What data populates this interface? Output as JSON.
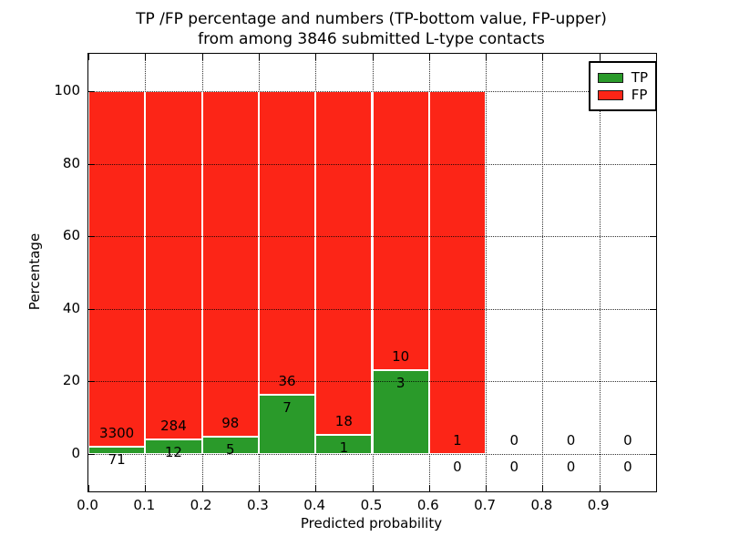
{
  "chart_data": {
    "type": "bar",
    "stacked": true,
    "title": "TP /FP percentage and numbers (TP-bottom value, FP-upper)",
    "subtitle": "from among 3846 submitted L-type contacts",
    "xlabel": "Predicted probability",
    "ylabel": "Percentage",
    "xlim": [
      0.0,
      1.0
    ],
    "ylim": [
      -10,
      110
    ],
    "grid": "dotted",
    "legend_position": "upper right",
    "x_tick_values": [
      0.0,
      0.1,
      0.2,
      0.3,
      0.4,
      0.5,
      0.6,
      0.7,
      0.8,
      0.9
    ],
    "x_tick_labels": [
      "0.0",
      "0.1",
      "0.2",
      "0.3",
      "0.4",
      "0.5",
      "0.6",
      "0.7",
      "0.8",
      "0.9"
    ],
    "y_tick_values": [
      0,
      20,
      40,
      60,
      80,
      100
    ],
    "y_tick_labels": [
      "0",
      "20",
      "40",
      "60",
      "80",
      "100"
    ],
    "series": [
      {
        "name": "TP",
        "color": "#2a9a2a",
        "position": "bottom"
      },
      {
        "name": "FP",
        "color": "#fc2517",
        "position": "top"
      }
    ],
    "bins": [
      {
        "x_start": 0.0,
        "x_end": 0.1,
        "tp": 71,
        "fp": 3300
      },
      {
        "x_start": 0.1,
        "x_end": 0.2,
        "tp": 12,
        "fp": 284
      },
      {
        "x_start": 0.2,
        "x_end": 0.3,
        "tp": 5,
        "fp": 98
      },
      {
        "x_start": 0.3,
        "x_end": 0.4,
        "tp": 7,
        "fp": 36
      },
      {
        "x_start": 0.4,
        "x_end": 0.5,
        "tp": 1,
        "fp": 18
      },
      {
        "x_start": 0.5,
        "x_end": 0.6,
        "tp": 3,
        "fp": 10
      },
      {
        "x_start": 0.6,
        "x_end": 0.7,
        "tp": 0,
        "fp": 1
      },
      {
        "x_start": 0.7,
        "x_end": 0.8,
        "tp": 0,
        "fp": 0
      },
      {
        "x_start": 0.8,
        "x_end": 0.9,
        "tp": 0,
        "fp": 0
      },
      {
        "x_start": 0.9,
        "x_end": 1.0,
        "tp": 0,
        "fp": 0
      }
    ]
  }
}
